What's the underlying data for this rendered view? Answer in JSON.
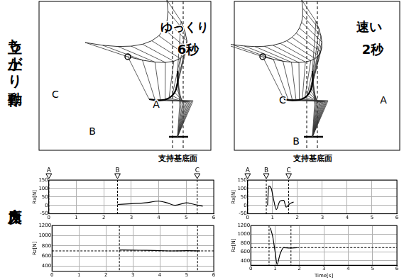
{
  "row_labels": [
    "立ち上がり動作",
    "床反力"
  ],
  "motion_panels": [
    {
      "speed": "ゆっくり",
      "duration": "6秒",
      "labels": [
        "A",
        "B",
        "C"
      ],
      "base_label": "支持基底面"
    },
    {
      "speed": "速い",
      "duration": "2秒",
      "labels": [
        "A",
        "B",
        "C"
      ],
      "base_label": "支持基底面"
    }
  ],
  "chart_data": [
    {
      "type": "line",
      "y_label": "Rx[N]",
      "color": "#000000",
      "x": [
        2.5,
        3,
        3.5,
        4,
        4.3,
        4.6,
        5,
        5.3,
        5.6
      ],
      "values": [
        5,
        10,
        15,
        25,
        15,
        0,
        15,
        5,
        -5
      ],
      "xlim": [
        0,
        6
      ],
      "xticks": [
        0,
        1,
        2,
        3,
        4,
        5,
        6
      ],
      "ylim": [
        -50,
        150
      ],
      "yticks": [
        -50,
        0,
        50,
        100,
        150
      ],
      "grid": true,
      "events": [
        {
          "label": "A",
          "x": 0
        },
        {
          "label": "B",
          "x": 2.5
        },
        {
          "label": "C",
          "x": 5.4
        }
      ]
    },
    {
      "type": "line",
      "y_label": "Rz[N]",
      "color": "#000000",
      "x": [
        2.5,
        3,
        3.5,
        4,
        4.5,
        5,
        5.5
      ],
      "values": [
        720,
        715,
        712,
        705,
        700,
        704,
        700
      ],
      "xlim": [
        0,
        6
      ],
      "xticks": [
        0,
        1,
        2,
        3,
        4,
        5,
        6
      ],
      "ylim": [
        300,
        1200
      ],
      "yticks": [
        400,
        600,
        800,
        1000,
        1200
      ],
      "grid": true,
      "reference_line": {
        "value": 700,
        "line_style": "dashed"
      },
      "event_lines": [
        2.5,
        5.4
      ]
    },
    {
      "type": "line",
      "y_label": "Rx[N]",
      "color": "#000000",
      "x": [
        0.8,
        0.85,
        0.95,
        1.05,
        1.15,
        1.3,
        1.45,
        1.55,
        1.7,
        1.85
      ],
      "values": [
        0,
        115,
        100,
        30,
        -25,
        25,
        30,
        -10,
        10,
        20
      ],
      "xlim": [
        0,
        6
      ],
      "xticks": [
        0,
        1,
        2,
        3,
        4,
        5,
        6
      ],
      "ylim": [
        -50,
        150
      ],
      "yticks": [
        -50,
        0,
        50,
        100,
        150
      ],
      "grid": true,
      "events": [
        {
          "label": "A",
          "x": 0
        },
        {
          "label": "B",
          "x": 0.75
        },
        {
          "label": "C",
          "x": 1.65
        }
      ]
    },
    {
      "type": "line",
      "y_label": "Rz[N]",
      "x_label": "Time[s]",
      "color": "#000000",
      "x": [
        0.8,
        0.9,
        1.0,
        1.08,
        1.2,
        1.35,
        1.6,
        1.9
      ],
      "values": [
        1150,
        950,
        600,
        320,
        550,
        700,
        690,
        700
      ],
      "xlim": [
        0,
        6
      ],
      "xticks": [
        0,
        1,
        2,
        3,
        4,
        5,
        6
      ],
      "ylim": [
        300,
        1200
      ],
      "yticks": [
        400,
        600,
        800,
        1000,
        1200
      ],
      "grid": true,
      "reference_line": {
        "value": 700,
        "line_style": "dashed"
      },
      "event_lines": [
        0.75,
        1.65
      ]
    }
  ]
}
